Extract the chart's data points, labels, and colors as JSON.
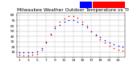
{
  "title": "Milwaukee Weather Outdoor Temperature vs THSW Index per Hour (24 Hours)",
  "hours": [
    1,
    2,
    3,
    4,
    5,
    6,
    7,
    8,
    9,
    10,
    11,
    12,
    13,
    14,
    15,
    16,
    17,
    18,
    19,
    20,
    21,
    22,
    23,
    24
  ],
  "temp_values": [
    10,
    9,
    9,
    10,
    11,
    18,
    30,
    44,
    55,
    62,
    67,
    70,
    71,
    68,
    63,
    57,
    50,
    44,
    38,
    33,
    28,
    25,
    22,
    20
  ],
  "thsw_values": [
    5,
    4,
    4,
    5,
    6,
    14,
    28,
    45,
    58,
    67,
    74,
    78,
    79,
    75,
    68,
    60,
    50,
    42,
    34,
    28,
    22,
    18,
    15,
    13
  ],
  "temp_color": "#0000ff",
  "thsw_color": "#ff0000",
  "bg_color": "#ffffff",
  "grid_color": "#b0b0b0",
  "ylim": [
    0,
    85
  ],
  "xlim": [
    0.5,
    24.5
  ],
  "ytick_labels": [
    "10",
    "20",
    "30",
    "40",
    "50",
    "60",
    "70",
    "80"
  ],
  "ytick_values": [
    10,
    20,
    30,
    40,
    50,
    60,
    70,
    80
  ],
  "xtick_values": [
    1,
    3,
    5,
    7,
    9,
    11,
    13,
    15,
    17,
    19,
    21,
    23
  ],
  "xtick_labels": [
    "1",
    "3",
    "5",
    "7",
    "9",
    "11",
    "13",
    "15",
    "17",
    "19",
    "21",
    "23"
  ],
  "legend_temp_color": "#0000ff",
  "legend_thsw_color": "#ff0000",
  "title_fontsize": 4.2,
  "tick_fontsize": 3.2,
  "marker_size": 1.2
}
